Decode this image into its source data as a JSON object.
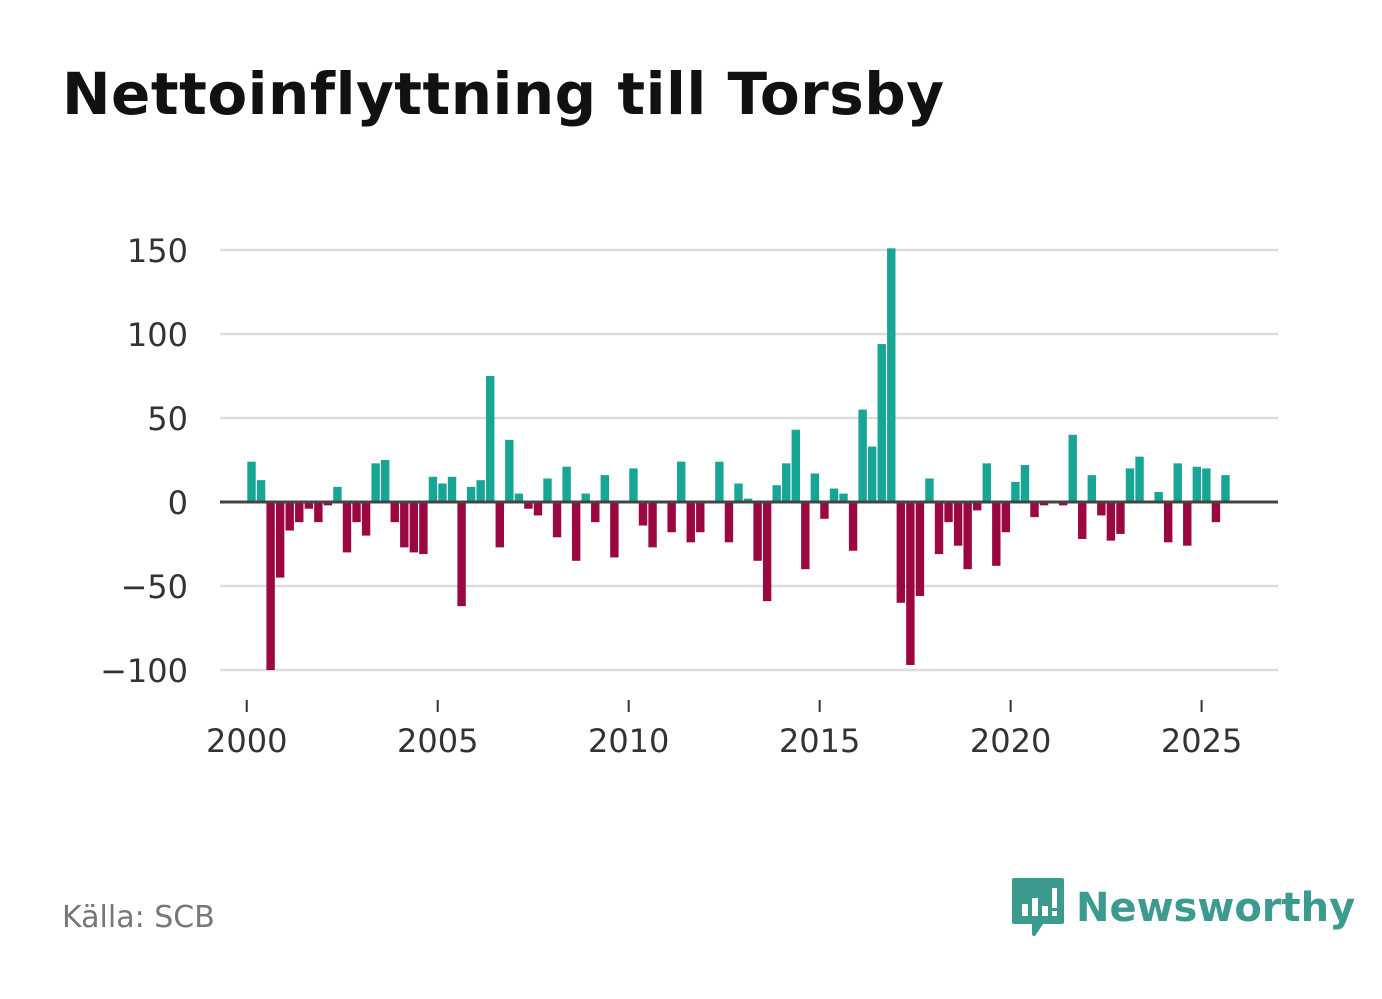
{
  "title": "Nettoinflyttning till Torsby",
  "source": "Källa: SCB",
  "brand": "Newsworthy",
  "colors": {
    "positive": "#17a595",
    "negative": "#9b0740",
    "grid": "#dddddd",
    "zero": "#444444",
    "axis_text": "#333333",
    "brand": "#3d9a8e"
  },
  "chart_data": {
    "type": "bar",
    "title": "Nettoinflyttning till Torsby",
    "xlabel": "",
    "ylabel": "",
    "ylim": [
      -100,
      150
    ],
    "xlim": [
      1999.3,
      2027.0
    ],
    "yticks": [
      150,
      100,
      50,
      0,
      -50,
      -100
    ],
    "ytick_labels": [
      "150",
      "100",
      "50",
      "0",
      "−50",
      "−100"
    ],
    "xticks": [
      2000,
      2005,
      2010,
      2015,
      2020,
      2025
    ],
    "xtick_labels": [
      "2000",
      "2005",
      "2010",
      "2015",
      "2020",
      "2025"
    ],
    "x": [
      2000.125,
      2000.375,
      2000.625,
      2000.875,
      2001.125,
      2001.375,
      2001.625,
      2001.875,
      2002.125,
      2002.375,
      2002.625,
      2002.875,
      2003.125,
      2003.375,
      2003.625,
      2003.875,
      2004.125,
      2004.375,
      2004.625,
      2004.875,
      2005.125,
      2005.375,
      2005.625,
      2005.875,
      2006.125,
      2006.375,
      2006.625,
      2006.875,
      2007.125,
      2007.375,
      2007.625,
      2007.875,
      2008.125,
      2008.375,
      2008.625,
      2008.875,
      2009.125,
      2009.375,
      2009.625,
      2009.875,
      2010.125,
      2010.375,
      2010.625,
      2010.875,
      2011.125,
      2011.375,
      2011.625,
      2011.875,
      2012.125,
      2012.375,
      2012.625,
      2012.875,
      2013.125,
      2013.375,
      2013.625,
      2013.875,
      2014.125,
      2014.375,
      2014.625,
      2014.875,
      2015.125,
      2015.375,
      2015.625,
      2015.875,
      2016.125,
      2016.375,
      2016.625,
      2016.875,
      2017.125,
      2017.375,
      2017.625,
      2017.875,
      2018.125,
      2018.375,
      2018.625,
      2018.875,
      2019.125,
      2019.375,
      2019.625,
      2019.875,
      2020.125,
      2020.375,
      2020.625,
      2020.875,
      2021.125,
      2021.375,
      2021.625,
      2021.875,
      2022.125,
      2022.375,
      2022.625,
      2022.875,
      2023.125,
      2023.375,
      2023.625,
      2023.875,
      2024.125,
      2024.375,
      2024.625,
      2024.875,
      2025.125,
      2025.375,
      2025.625
    ],
    "values": [
      24,
      13,
      -100,
      -45,
      -17,
      -12,
      -4,
      -12,
      -2,
      9,
      -30,
      -12,
      -20,
      23,
      25,
      -12,
      -27,
      -30,
      -31,
      15,
      11,
      15,
      -62,
      9,
      13,
      75,
      -27,
      37,
      5,
      -4,
      -8,
      14,
      -21,
      21,
      -35,
      5,
      -12,
      16,
      -33,
      0,
      20,
      -14,
      -27,
      0,
      -18,
      24,
      -24,
      -18,
      0,
      24,
      -24,
      11,
      2,
      -35,
      -59,
      10,
      23,
      43,
      -40,
      17,
      -10,
      8,
      5,
      -29,
      55,
      33,
      94,
      151,
      -60,
      -97,
      -56,
      14,
      -31,
      -12,
      -26,
      -40,
      -5,
      23,
      -38,
      -18,
      12,
      22,
      -9,
      -2,
      0,
      -2,
      40,
      -22,
      16,
      -8,
      -23,
      -19,
      20,
      27,
      0,
      6,
      -24,
      23,
      -26,
      21,
      20,
      -12,
      16
    ]
  }
}
